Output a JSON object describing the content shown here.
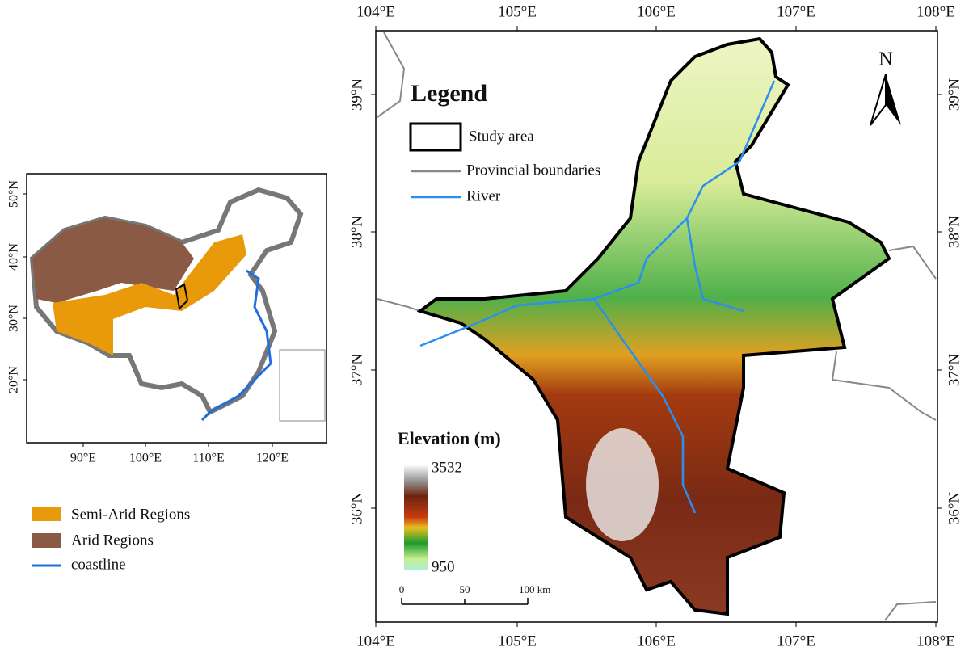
{
  "inset": {
    "lat_labels": [
      "50°N",
      "40°N",
      "30°N",
      "20°N"
    ],
    "lon_labels": [
      "90°E",
      "100°E",
      "110°E",
      "120°E"
    ],
    "legend": [
      "Semi-Arid Regions",
      "Arid Regions",
      "coastline"
    ]
  },
  "main": {
    "lon_labels": [
      "104°E",
      "105°E",
      "106°E",
      "107°E",
      "108°E"
    ],
    "lat_labels": [
      "39°N",
      "38°N",
      "37°N",
      "36°N"
    ],
    "legend_title": "Legend",
    "legend": [
      "Study area",
      "Provincial boundaries",
      "River"
    ],
    "north": "N",
    "elevation_title": "Elevation (m)",
    "elevation_max": "3532",
    "elevation_min": "950",
    "scale": [
      "0",
      "50",
      "100 km"
    ]
  }
}
